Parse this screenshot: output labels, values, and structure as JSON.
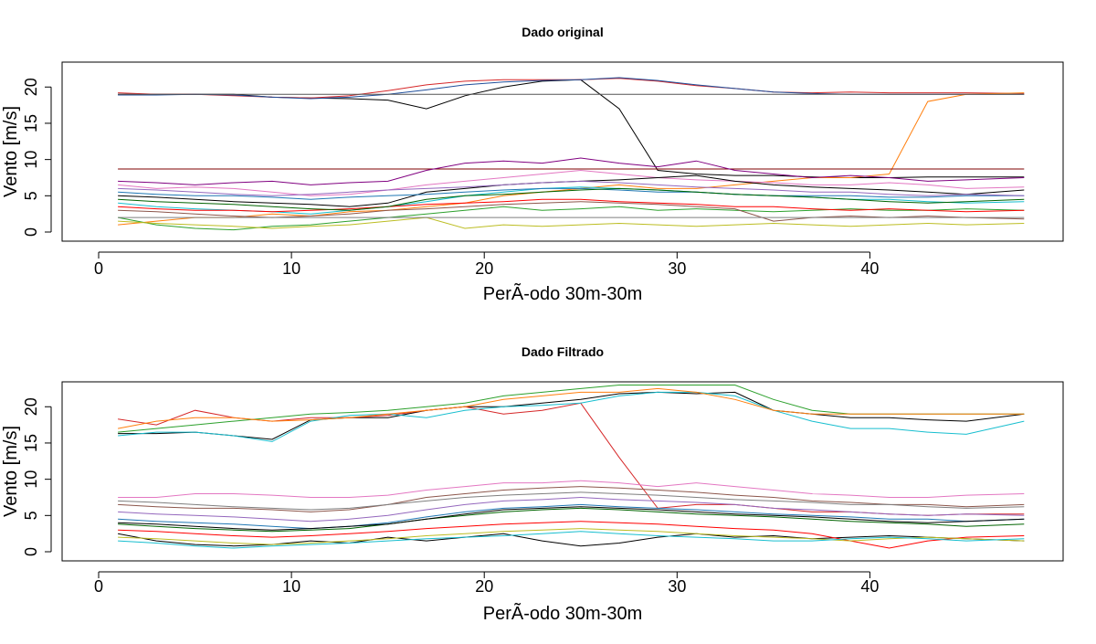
{
  "window_title": "",
  "chart_data": [
    {
      "type": "line",
      "title": "Dado original",
      "xlabel": "PerÃ-odo 30m-30m",
      "ylabel": "Vento [m/s]",
      "xlim": [
        0,
        50
      ],
      "ylim": [
        0,
        22
      ],
      "x_ticks": [
        0,
        10,
        20,
        30,
        40
      ],
      "y_ticks": [
        0,
        5,
        10,
        15,
        20
      ],
      "x": [
        1,
        3,
        5,
        7,
        9,
        11,
        13,
        15,
        17,
        19,
        21,
        23,
        25,
        27,
        29,
        31,
        33,
        35,
        37,
        39,
        41,
        43,
        45,
        48
      ],
      "series": [
        {
          "color": "#000000",
          "values": [
            19.0,
            19.0,
            19.0,
            19.0,
            18.6,
            18.5,
            18.4,
            18.2,
            17.0,
            18.8,
            20.0,
            20.8,
            21.0,
            17.0,
            8.5,
            8.0,
            7.8,
            7.8,
            7.6,
            7.5,
            7.5,
            7.6,
            7.6,
            7.6
          ]
        },
        {
          "color": "#d62728",
          "values": [
            19.2,
            19.0,
            19.0,
            18.8,
            18.6,
            18.5,
            18.8,
            19.5,
            20.3,
            20.8,
            21.0,
            21.0,
            21.0,
            21.2,
            20.8,
            20.2,
            19.8,
            19.3,
            19.2,
            19.3,
            19.2,
            19.2,
            19.2,
            19.1
          ]
        },
        {
          "color": "#1f4e9a",
          "values": [
            18.9,
            18.9,
            19.0,
            18.9,
            18.6,
            18.4,
            18.6,
            19.0,
            19.6,
            20.3,
            20.7,
            20.9,
            21.0,
            21.3,
            20.9,
            20.3,
            19.8,
            19.3,
            19.1,
            19.0,
            19.0,
            19.0,
            19.0,
            19.0
          ]
        },
        {
          "color": "#ff7f0e",
          "values": [
            1.0,
            1.5,
            2.0,
            2.0,
            2.5,
            2.2,
            2.8,
            3.0,
            3.5,
            4.0,
            5.0,
            5.5,
            6.0,
            6.5,
            6.0,
            6.0,
            6.5,
            7.0,
            7.5,
            7.5,
            8.0,
            18.0,
            19.0,
            19.2
          ]
        },
        {
          "color": "#555555",
          "values": [
            19.0,
            19.0,
            19.0,
            19.0,
            19.0,
            19.0,
            19.0,
            19.0,
            19.0,
            19.0,
            19.0,
            19.0,
            19.0,
            19.0,
            19.0,
            19.0,
            19.0,
            19.0,
            19.0,
            19.0,
            19.0,
            19.0,
            19.0,
            19.0
          ]
        },
        {
          "color": "#7f0000",
          "values": [
            8.7,
            8.7,
            8.7,
            8.7,
            8.7,
            8.7,
            8.7,
            8.7,
            8.7,
            8.7,
            8.7,
            8.7,
            8.7,
            8.7,
            8.7,
            8.7,
            8.7,
            8.7,
            8.7,
            8.7,
            8.7,
            8.7,
            8.7,
            8.7
          ]
        },
        {
          "color": "#800080",
          "values": [
            7.0,
            6.8,
            6.5,
            6.8,
            7.0,
            6.5,
            6.8,
            7.0,
            8.5,
            9.5,
            9.8,
            9.5,
            10.2,
            9.5,
            9.0,
            9.8,
            8.5,
            8.0,
            7.5,
            7.8,
            7.5,
            7.0,
            7.2,
            7.5
          ]
        },
        {
          "color": "#2ca02c",
          "values": [
            2.0,
            1.0,
            0.5,
            0.3,
            0.8,
            1.0,
            1.5,
            2.0,
            2.5,
            3.0,
            3.5,
            3.0,
            3.2,
            3.5,
            3.0,
            3.2,
            3.0,
            2.8,
            3.0,
            3.2,
            3.0,
            3.0,
            3.2,
            3.0
          ]
        },
        {
          "color": "#e377c2",
          "values": [
            6.5,
            6.0,
            6.2,
            6.0,
            5.5,
            5.0,
            5.2,
            5.8,
            6.5,
            7.0,
            7.5,
            8.0,
            8.5,
            8.0,
            7.5,
            7.2,
            7.0,
            6.8,
            6.5,
            6.5,
            6.8,
            6.5,
            6.0,
            6.2
          ]
        },
        {
          "color": "#17becf",
          "values": [
            4.0,
            3.5,
            3.2,
            3.0,
            2.8,
            2.5,
            3.0,
            3.5,
            4.2,
            5.0,
            5.5,
            6.0,
            6.2,
            6.0,
            5.8,
            5.5,
            5.2,
            5.0,
            4.8,
            4.5,
            4.5,
            4.2,
            4.0,
            4.2
          ]
        },
        {
          "color": "#8c564b",
          "values": [
            3.0,
            2.8,
            2.5,
            2.2,
            2.0,
            2.2,
            2.5,
            3.0,
            3.2,
            3.5,
            3.8,
            4.0,
            4.2,
            4.0,
            3.8,
            3.5,
            3.2,
            1.5,
            2.0,
            2.2,
            2.0,
            2.2,
            2.0,
            1.8
          ]
        },
        {
          "color": "#000000",
          "values": [
            5.0,
            4.8,
            4.5,
            4.2,
            4.0,
            3.8,
            3.5,
            4.0,
            5.5,
            6.0,
            6.5,
            6.8,
            7.0,
            7.2,
            7.5,
            7.8,
            7.0,
            6.5,
            6.2,
            6.0,
            5.8,
            5.5,
            5.2,
            5.8
          ]
        },
        {
          "color": "#bcbd22",
          "values": [
            1.5,
            1.2,
            1.0,
            0.8,
            0.5,
            0.8,
            1.0,
            1.5,
            2.0,
            0.5,
            1.0,
            0.8,
            1.0,
            1.2,
            1.0,
            0.8,
            1.0,
            1.2,
            1.0,
            0.8,
            1.0,
            1.2,
            1.0,
            1.2
          ]
        },
        {
          "color": "#1f77b4",
          "values": [
            5.5,
            5.2,
            5.0,
            5.0,
            4.8,
            4.5,
            4.8,
            5.0,
            5.2,
            5.5,
            5.8,
            6.0,
            6.0,
            5.8,
            5.5,
            5.5,
            5.2,
            5.0,
            5.0,
            5.0,
            4.8,
            4.8,
            5.0,
            5.0
          ]
        },
        {
          "color": "#ff0000",
          "values": [
            3.5,
            3.2,
            3.0,
            3.0,
            2.8,
            3.0,
            3.2,
            3.5,
            3.8,
            4.0,
            4.2,
            4.5,
            4.5,
            4.2,
            4.0,
            3.8,
            3.5,
            3.5,
            3.2,
            3.0,
            3.2,
            3.0,
            2.8,
            3.0
          ]
        },
        {
          "color": "#9467bd",
          "values": [
            6.0,
            5.8,
            5.5,
            5.2,
            5.0,
            5.2,
            5.5,
            5.8,
            6.0,
            6.2,
            6.5,
            6.8,
            7.0,
            6.8,
            6.5,
            6.2,
            6.0,
            5.8,
            5.5,
            5.5,
            5.2,
            5.0,
            5.2,
            5.0
          ]
        },
        {
          "color": "#7f7f7f",
          "values": [
            2.0,
            2.0,
            2.0,
            2.0,
            2.0,
            2.0,
            2.0,
            2.0,
            2.0,
            2.0,
            2.0,
            2.0,
            2.0,
            2.0,
            2.0,
            2.0,
            2.0,
            2.0,
            2.0,
            2.0,
            2.0,
            2.0,
            2.0,
            2.0
          ]
        },
        {
          "color": "#006400",
          "values": [
            4.5,
            4.2,
            4.0,
            3.8,
            3.5,
            3.2,
            3.0,
            3.5,
            4.5,
            5.0,
            5.2,
            5.5,
            5.8,
            6.0,
            5.8,
            5.5,
            5.2,
            5.0,
            4.8,
            4.5,
            4.2,
            4.0,
            4.2,
            4.5
          ]
        }
      ]
    },
    {
      "type": "line",
      "title": "Dado Filtrado",
      "xlabel": "PerÃ-odo 30m-30m",
      "ylabel": "Vento [m/s]",
      "xlim": [
        0,
        50
      ],
      "ylim": [
        0,
        22
      ],
      "x_ticks": [
        0,
        10,
        20,
        30,
        40
      ],
      "y_ticks": [
        0,
        5,
        10,
        15,
        20
      ],
      "x": [
        1,
        3,
        5,
        7,
        9,
        11,
        13,
        15,
        17,
        19,
        21,
        23,
        25,
        27,
        29,
        31,
        33,
        35,
        37,
        39,
        41,
        43,
        45,
        48
      ],
      "series": [
        {
          "color": "#000000",
          "values": [
            16.3,
            16.3,
            16.5,
            16.0,
            15.5,
            18.2,
            18.5,
            18.5,
            19.5,
            20.0,
            20.0,
            20.5,
            21.0,
            21.8,
            22.0,
            21.8,
            22.0,
            19.5,
            19.0,
            18.5,
            18.5,
            18.2,
            18.0,
            19.0
          ]
        },
        {
          "color": "#d62728",
          "values": [
            18.3,
            17.5,
            19.5,
            18.5,
            18.0,
            18.5,
            18.5,
            18.8,
            19.5,
            20.0,
            19.0,
            19.5,
            20.5,
            13.0,
            6.0,
            6.5,
            6.5,
            6.0,
            5.5,
            5.5,
            5.2,
            5.0,
            5.2,
            5.2
          ]
        },
        {
          "color": "#17becf",
          "values": [
            16.0,
            16.5,
            16.5,
            16.0,
            15.2,
            18.0,
            18.8,
            19.0,
            18.5,
            19.5,
            20.0,
            20.2,
            20.5,
            21.5,
            22.0,
            22.0,
            21.5,
            19.5,
            18.0,
            17.0,
            17.0,
            16.5,
            16.2,
            18.0
          ]
        },
        {
          "color": "#2ca02c",
          "values": [
            16.5,
            17.0,
            17.5,
            18.0,
            18.5,
            19.0,
            19.2,
            19.5,
            20.0,
            20.5,
            21.5,
            22.0,
            22.5,
            23.0,
            23.0,
            23.0,
            23.0,
            21.0,
            19.5,
            19.0,
            19.0,
            19.0,
            19.0,
            19.0
          ]
        },
        {
          "color": "#ff7f0e",
          "values": [
            17.0,
            18.0,
            18.5,
            18.5,
            18.0,
            18.2,
            18.5,
            19.0,
            19.5,
            20.0,
            21.0,
            21.5,
            22.0,
            22.0,
            22.5,
            22.0,
            21.0,
            19.5,
            19.0,
            19.0,
            19.0,
            19.0,
            19.0,
            19.0
          ]
        },
        {
          "color": "#e377c2",
          "values": [
            7.5,
            7.5,
            8.0,
            8.0,
            7.8,
            7.5,
            7.5,
            7.8,
            8.5,
            9.0,
            9.5,
            9.5,
            9.8,
            9.5,
            9.0,
            9.5,
            9.0,
            8.5,
            8.0,
            7.8,
            7.5,
            7.5,
            7.8,
            8.0
          ]
        },
        {
          "color": "#000000",
          "values": [
            2.5,
            1.5,
            1.0,
            0.8,
            1.0,
            1.5,
            1.2,
            2.0,
            1.5,
            2.0,
            2.5,
            1.5,
            0.8,
            1.2,
            2.0,
            2.5,
            2.0,
            2.2,
            1.8,
            2.0,
            2.2,
            2.0,
            1.8,
            1.5
          ]
        },
        {
          "color": "#8c564b",
          "values": [
            6.5,
            6.2,
            6.0,
            6.0,
            5.8,
            5.5,
            5.8,
            6.5,
            7.5,
            8.0,
            8.5,
            8.8,
            9.0,
            8.8,
            8.5,
            8.2,
            7.8,
            7.5,
            7.0,
            6.8,
            6.5,
            6.5,
            6.2,
            6.5
          ]
        },
        {
          "color": "#1f77b4",
          "values": [
            4.5,
            4.2,
            4.0,
            3.8,
            3.5,
            3.2,
            3.5,
            4.0,
            4.8,
            5.5,
            6.0,
            6.2,
            6.5,
            6.2,
            6.0,
            5.8,
            5.5,
            5.2,
            5.0,
            4.8,
            4.5,
            4.5,
            4.2,
            4.5
          ]
        },
        {
          "color": "#ff0000",
          "values": [
            3.0,
            2.8,
            2.5,
            2.2,
            2.0,
            2.2,
            2.5,
            2.8,
            3.2,
            3.5,
            3.8,
            4.0,
            4.2,
            4.0,
            3.8,
            3.5,
            3.2,
            3.0,
            2.5,
            1.5,
            0.5,
            1.5,
            2.0,
            2.2
          ]
        },
        {
          "color": "#9467bd",
          "values": [
            5.5,
            5.2,
            5.0,
            4.8,
            4.5,
            4.2,
            4.5,
            5.0,
            5.8,
            6.5,
            7.0,
            7.2,
            7.5,
            7.2,
            7.0,
            6.8,
            6.5,
            6.0,
            5.8,
            5.5,
            5.2,
            5.0,
            5.2,
            5.0
          ]
        },
        {
          "color": "#bcbd22",
          "values": [
            2.0,
            1.8,
            1.5,
            1.2,
            1.0,
            1.2,
            1.5,
            1.8,
            2.2,
            2.5,
            2.8,
            3.0,
            3.2,
            3.0,
            2.8,
            2.5,
            2.2,
            2.0,
            1.8,
            1.5,
            1.8,
            2.0,
            1.8,
            1.5
          ]
        },
        {
          "color": "#006400",
          "values": [
            3.8,
            3.5,
            3.2,
            3.0,
            2.8,
            3.0,
            3.2,
            3.8,
            4.5,
            5.0,
            5.5,
            5.8,
            6.0,
            5.8,
            5.5,
            5.2,
            5.0,
            4.8,
            4.5,
            4.2,
            4.0,
            3.8,
            3.5,
            3.8
          ]
        },
        {
          "color": "#7f7f7f",
          "values": [
            7.0,
            6.8,
            6.5,
            6.2,
            6.0,
            5.8,
            6.0,
            6.5,
            7.0,
            7.5,
            7.8,
            8.0,
            8.2,
            8.0,
            7.8,
            7.5,
            7.2,
            7.0,
            6.8,
            6.5,
            6.5,
            6.2,
            6.0,
            6.2
          ]
        },
        {
          "color": "#000000",
          "values": [
            4.0,
            3.8,
            3.5,
            3.2,
            3.0,
            3.2,
            3.5,
            3.8,
            4.5,
            5.2,
            5.8,
            6.0,
            6.2,
            6.0,
            5.8,
            5.5,
            5.2,
            5.0,
            4.8,
            4.5,
            4.2,
            4.0,
            4.2,
            4.5
          ]
        },
        {
          "color": "#17becf",
          "values": [
            1.5,
            1.2,
            0.8,
            0.5,
            0.8,
            1.0,
            1.2,
            1.5,
            1.8,
            2.0,
            2.2,
            2.5,
            2.8,
            2.5,
            2.2,
            2.0,
            1.8,
            1.5,
            1.5,
            1.8,
            2.0,
            1.8,
            1.5,
            1.8
          ]
        }
      ]
    }
  ]
}
